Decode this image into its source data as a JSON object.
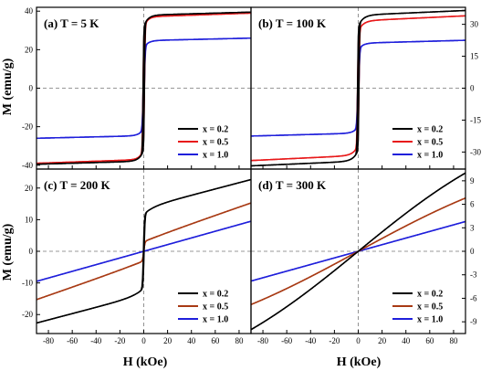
{
  "figure": {
    "xlabel": "H (kOe)",
    "ylabel_left": "M (emu/g)"
  },
  "chart_data": [
    {
      "type": "line",
      "title": "(a) T = 5 K",
      "xlim": [
        -90,
        90
      ],
      "ylim": [
        -42,
        42
      ],
      "xticks": [],
      "yticks": [
        -40,
        -20,
        0,
        20,
        40
      ],
      "ytick_side": "left",
      "legend": "bottom-right",
      "series": [
        {
          "name": "x = 0.2",
          "color": "#000000",
          "ms": 39.5,
          "k": 0.04,
          "hc": 0.6,
          "w": 0.5,
          "a": 0.0,
          "p": 3.5
        },
        {
          "name": "x = 0.5",
          "color": "#e8191a",
          "ms": 39.0,
          "k": 0.05,
          "hc": 0.6,
          "w": 0.6,
          "a": 0.0,
          "p": 3.0
        },
        {
          "name": "x = 1.0",
          "color": "#1f1fdb",
          "ms": 26.0,
          "k": 0.05,
          "hc": 0.5,
          "w": 0.8,
          "a": 0.0,
          "p": 3.5
        }
      ]
    },
    {
      "type": "line",
      "title": "(b) T = 100 K",
      "xlim": [
        -90,
        90
      ],
      "ylim": [
        -38,
        38
      ],
      "xticks": [],
      "yticks": [
        -30,
        -15,
        0,
        15,
        30
      ],
      "ytick_side": "right",
      "legend": "bottom-right",
      "series": [
        {
          "name": "x = 0.2",
          "color": "#000000",
          "ms": 36.5,
          "k": 0.06,
          "hc": 0.6,
          "w": 0.5,
          "a": 0.0,
          "p": 4.0
        },
        {
          "name": "x = 0.5",
          "color": "#e8191a",
          "ms": 34.0,
          "k": 0.07,
          "hc": 0.6,
          "w": 0.6,
          "a": 0.0,
          "p": 4.0
        },
        {
          "name": "x = 1.0",
          "color": "#1f1fdb",
          "ms": 22.5,
          "k": 0.06,
          "hc": 0.5,
          "w": 0.8,
          "a": 0.0,
          "p": 3.5
        }
      ]
    },
    {
      "type": "line",
      "title": "(c) T = 200 K",
      "xlim": [
        -90,
        90
      ],
      "ylim": [
        -26,
        26
      ],
      "xticks": [
        -80,
        -60,
        -40,
        -20,
        0,
        20,
        40,
        60,
        80
      ],
      "yticks": [
        -20,
        -10,
        0,
        10,
        20
      ],
      "ytick_side": "left",
      "legend": "bottom-right",
      "series": [
        {
          "name": "x = 0.2",
          "color": "#000000",
          "ms": 23.5,
          "k": 0.1,
          "hc": 0.3,
          "w": 0.8,
          "a": 0.35,
          "p": 8.0
        },
        {
          "name": "x = 0.5",
          "color": "#a83a14",
          "ms": 18.0,
          "k": 0.2,
          "hc": 0.0,
          "w": 1.0,
          "a": 0.75,
          "p": 30.0
        },
        {
          "name": "x = 1.0",
          "color": "#1f1fdb",
          "ms": 9.5,
          "k": 0.0,
          "hc": 0.0,
          "w": 1.0,
          "a": 1.0,
          "p": 1.0
        }
      ]
    },
    {
      "type": "line",
      "title": "(d) T = 300 K",
      "xlim": [
        -90,
        90
      ],
      "ylim": [
        -10.5,
        10.5
      ],
      "xticks": [
        -80,
        -60,
        -40,
        -20,
        0,
        20,
        40,
        60,
        80
      ],
      "yticks": [
        -9,
        -6,
        -3,
        0,
        3,
        6,
        9
      ],
      "ytick_side": "right",
      "legend": "bottom-right",
      "series": [
        {
          "name": "x = 0.2",
          "color": "#000000",
          "ms": 10.0,
          "k": 0.0,
          "hc": 0.0,
          "w": 1.0,
          "a": 1.0,
          "p": 1.0,
          "sat": 150
        },
        {
          "name": "x = 0.5",
          "color": "#a83a14",
          "ms": 6.8,
          "k": 0.0,
          "hc": 0.0,
          "w": 1.0,
          "a": 1.0,
          "p": 1.0,
          "sat": 170
        },
        {
          "name": "x = 1.0",
          "color": "#1f1fdb",
          "ms": 3.8,
          "k": 0.0,
          "hc": 0.0,
          "w": 1.0,
          "a": 1.0,
          "p": 1.0
        }
      ]
    }
  ]
}
